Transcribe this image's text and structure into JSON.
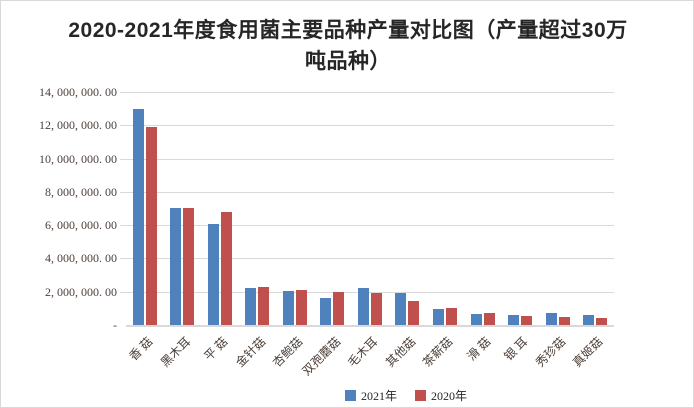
{
  "title": "2020-2021年度食用菌主要品种产量对比图（产量超过30万吨品种）",
  "colors": {
    "bar_2021": "#4F81BD",
    "bar_2020": "#C0504D",
    "gridline": "#D9D9D9",
    "axis_text": "#4B3E37",
    "title_text": "#262626",
    "frame_border": "#D9D9D9",
    "background": "#FFFFFF"
  },
  "y_axis": {
    "tick_labels": [
      "14, 000, 000. 00",
      "12, 000, 000. 00",
      "10, 000, 000. 00",
      "8, 000, 000. 00",
      "6, 000, 000. 00",
      "4, 000, 000. 00",
      "2, 000, 000. 00",
      "-"
    ],
    "max": 14000000,
    "min": 0,
    "step": 2000000
  },
  "legend": {
    "items": [
      {
        "label": "2021年",
        "color": "#4F81BD"
      },
      {
        "label": "2020年",
        "color": "#C0504D"
      }
    ],
    "position": "bottom"
  },
  "chart_data": {
    "type": "bar",
    "title": "2020-2021年度食用菌主要品种产量对比图（产量超过30万吨品种）",
    "categories": [
      "香 菇",
      "黑木耳",
      "平 菇",
      "金针菇",
      "杏鲍菇",
      "双孢蘑菇",
      "毛木耳",
      "其他菇",
      "茶薪菇",
      "滑 菇",
      "银 耳",
      "秀珍菇",
      "真姬菇"
    ],
    "series": [
      {
        "name": "2021年",
        "color": "#4F81BD",
        "values": [
          13000000,
          7000000,
          6050000,
          2200000,
          2050000,
          1600000,
          2200000,
          1900000,
          950000,
          650000,
          600000,
          700000,
          600000
        ]
      },
      {
        "name": "2020年",
        "color": "#C0504D",
        "values": [
          11900000,
          7050000,
          6800000,
          2300000,
          2100000,
          2000000,
          1900000,
          1450000,
          1000000,
          700000,
          550000,
          500000,
          450000
        ]
      }
    ],
    "xlabel": "",
    "ylabel": "",
    "ylim": [
      0,
      14000000
    ],
    "grid": true,
    "legend_position": "bottom"
  }
}
